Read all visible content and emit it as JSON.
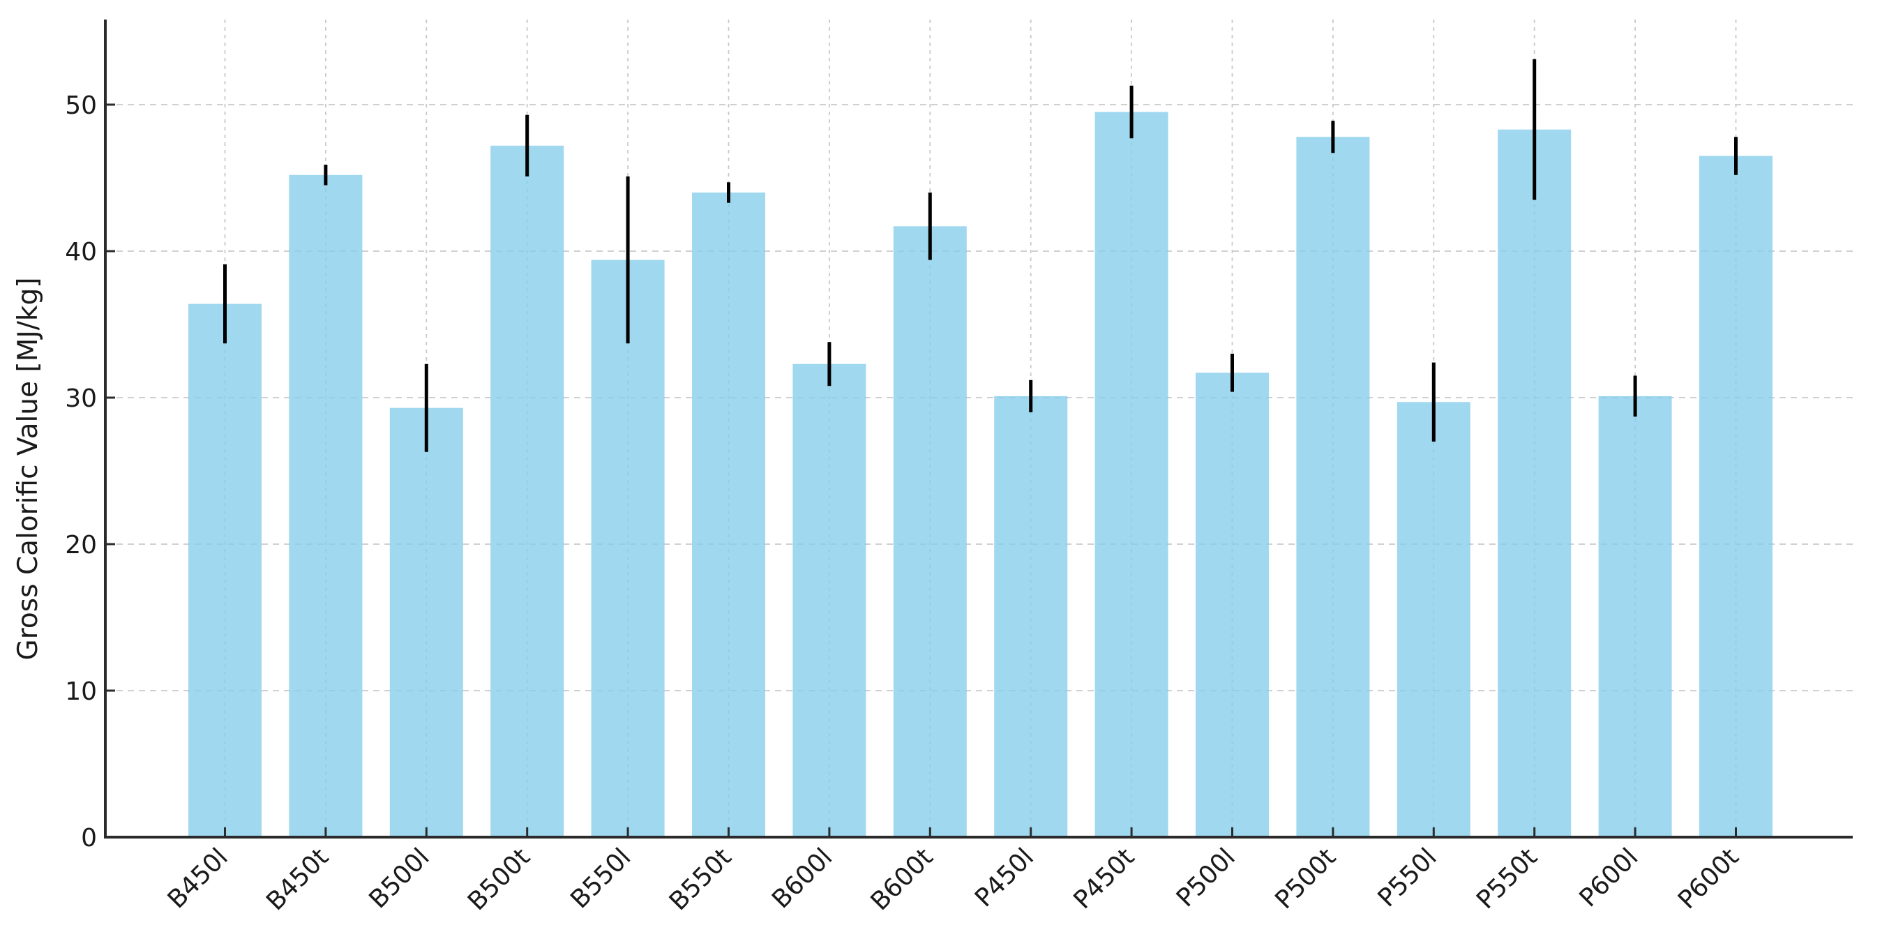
{
  "chart_data": {
    "type": "bar",
    "title": "",
    "xlabel": "",
    "ylabel": "Gross Calorific Value [MJ/kg]",
    "categories": [
      "B450l",
      "B450t",
      "B500l",
      "B500t",
      "B550l",
      "B550t",
      "B600l",
      "B600t",
      "P450l",
      "P450t",
      "P500l",
      "P500t",
      "P550l",
      "P550t",
      "P600l",
      "P600t"
    ],
    "values": [
      36.4,
      45.2,
      29.3,
      47.2,
      39.4,
      44.0,
      32.3,
      41.7,
      30.1,
      49.5,
      31.7,
      47.8,
      29.7,
      48.3,
      30.1,
      46.5
    ],
    "errors": [
      2.7,
      0.7,
      3.0,
      2.1,
      5.7,
      0.7,
      1.5,
      2.3,
      1.1,
      1.8,
      1.3,
      1.1,
      2.7,
      4.8,
      1.4,
      1.3
    ],
    "ylim": [
      0,
      55.8
    ],
    "yticks": [
      0,
      10,
      20,
      30,
      40,
      50
    ],
    "grid": "dashed-both-axes",
    "legend_position": "none",
    "colors": {
      "bar_fill": "#87CEEB",
      "bar_opacity": "0.8",
      "error_bar": "#000000",
      "grid_line": "#c9c9c9",
      "spine": "#2b2b2b",
      "tick_text": "#1a1a1a"
    }
  }
}
